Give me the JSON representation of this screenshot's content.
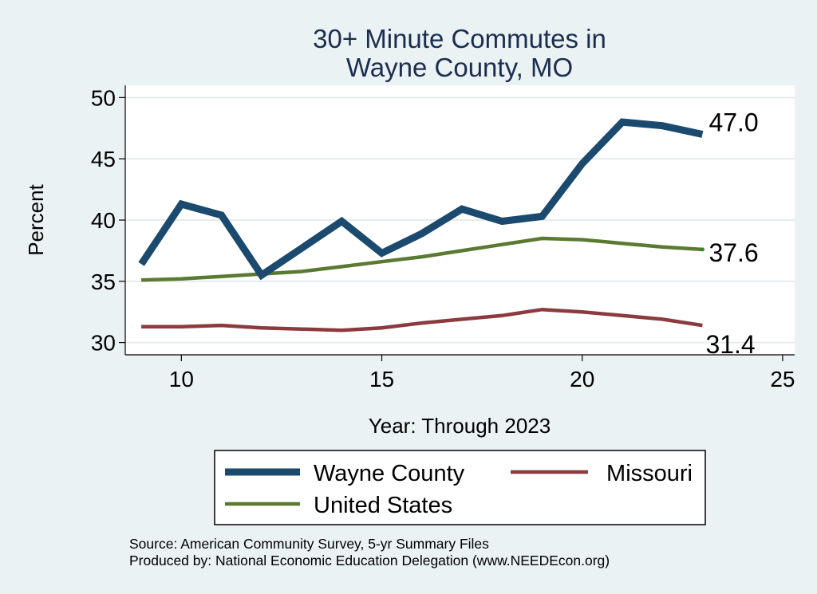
{
  "chart_data": {
    "type": "line",
    "title_lines": [
      "30+ Minute Commutes in",
      "Wayne County, MO"
    ],
    "xlabel": "Year: Through 2023",
    "ylabel": "Percent",
    "xlim": [
      8.6,
      25.3
    ],
    "ylim": [
      29.0,
      51.0
    ],
    "xticks": [
      10,
      15,
      20,
      25
    ],
    "yticks": [
      30,
      35,
      40,
      45,
      50
    ],
    "grid": true,
    "legend_position": "bottom",
    "series": [
      {
        "name": "Wayne County",
        "color": "#1b4a6e",
        "x": [
          9,
          10,
          11,
          12,
          13,
          14,
          15,
          16,
          17,
          18,
          19,
          20,
          21,
          22,
          23
        ],
        "values": [
          36.4,
          41.3,
          40.4,
          35.5,
          37.7,
          39.9,
          37.3,
          38.9,
          40.9,
          39.9,
          40.3,
          44.6,
          48.0,
          47.7,
          47.0
        ],
        "end_label": "47.0"
      },
      {
        "name": "Missouri",
        "color": "#8c3a3e",
        "x": [
          9,
          10,
          11,
          12,
          13,
          14,
          15,
          16,
          17,
          18,
          19,
          20,
          21,
          22,
          23
        ],
        "values": [
          31.3,
          31.3,
          31.4,
          31.2,
          31.1,
          31.0,
          31.2,
          31.6,
          31.9,
          32.2,
          32.7,
          32.5,
          32.2,
          31.9,
          31.4
        ],
        "end_label": "31.4"
      },
      {
        "name": "United States",
        "color": "#5a7a32",
        "x": [
          9,
          10,
          11,
          12,
          13,
          14,
          15,
          16,
          17,
          18,
          19,
          20,
          21,
          22,
          23
        ],
        "values": [
          35.1,
          35.2,
          35.4,
          35.6,
          35.8,
          36.2,
          36.6,
          37.0,
          37.5,
          38.0,
          38.5,
          38.4,
          38.1,
          37.8,
          37.6
        ],
        "end_label": "37.6"
      }
    ],
    "source_lines": [
      "Source: American Community Survey, 5-yr Summary Files",
      "Produced by: National Economic Education Delegation (www.NEEDEcon.org)"
    ]
  }
}
